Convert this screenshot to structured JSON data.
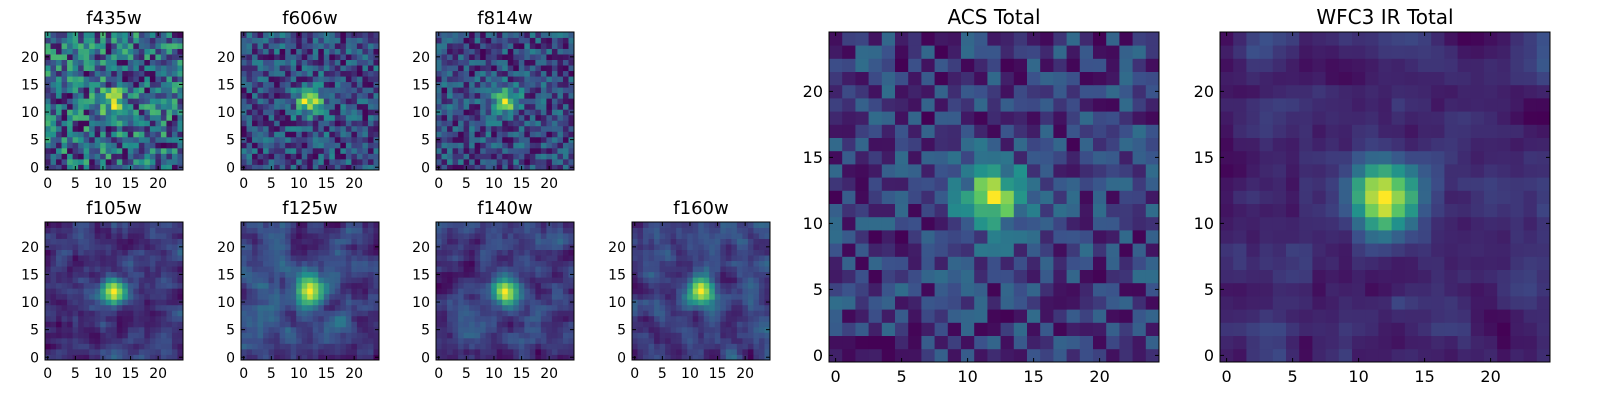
{
  "colormap": [
    "#440154",
    "#3b528b",
    "#21918c",
    "#5ec962",
    "#fde725"
  ],
  "chart_data": [
    {
      "type": "heatmap",
      "title": "f435w",
      "size": 25,
      "noise": 0.9,
      "blob": 0.6,
      "smooth": 0,
      "seed": 11,
      "xticks": [
        0,
        5,
        10,
        15,
        20
      ],
      "yticks": [
        0,
        5,
        10,
        15,
        20
      ],
      "xlim": [
        0,
        25
      ],
      "ylim": [
        0,
        25
      ]
    },
    {
      "type": "heatmap",
      "title": "f606w",
      "size": 25,
      "noise": 0.9,
      "blob": 1.3,
      "smooth": 0,
      "seed": 23,
      "xticks": [
        0,
        5,
        10,
        15,
        20
      ],
      "yticks": [
        0,
        5,
        10,
        15,
        20
      ],
      "xlim": [
        0,
        25
      ],
      "ylim": [
        0,
        25
      ]
    },
    {
      "type": "heatmap",
      "title": "f814w",
      "size": 25,
      "noise": 0.9,
      "blob": 1.2,
      "smooth": 0,
      "seed": 37,
      "xticks": [
        0,
        5,
        10,
        15,
        20
      ],
      "yticks": [
        0,
        5,
        10,
        15,
        20
      ],
      "xlim": [
        0,
        25
      ],
      "ylim": [
        0,
        25
      ]
    },
    {
      "type": "heatmap",
      "title": "f105w",
      "size": 25,
      "noise": 0.9,
      "blob": 1.1,
      "smooth": 1,
      "seed": 41,
      "xticks": [
        0,
        5,
        10,
        15,
        20
      ],
      "yticks": [
        0,
        5,
        10,
        15,
        20
      ],
      "xlim": [
        0,
        25
      ],
      "ylim": [
        0,
        25
      ]
    },
    {
      "type": "heatmap",
      "title": "f125w",
      "size": 25,
      "noise": 0.9,
      "blob": 1.1,
      "smooth": 1,
      "seed": 53,
      "xticks": [
        0,
        5,
        10,
        15,
        20
      ],
      "yticks": [
        0,
        5,
        10,
        15,
        20
      ],
      "xlim": [
        0,
        25
      ],
      "ylim": [
        0,
        25
      ]
    },
    {
      "type": "heatmap",
      "title": "f140w",
      "size": 25,
      "noise": 0.9,
      "blob": 1.0,
      "smooth": 1,
      "seed": 67,
      "xticks": [
        0,
        5,
        10,
        15,
        20
      ],
      "yticks": [
        0,
        5,
        10,
        15,
        20
      ],
      "xlim": [
        0,
        25
      ],
      "ylim": [
        0,
        25
      ]
    },
    {
      "type": "heatmap",
      "title": "f160w",
      "size": 25,
      "noise": 0.9,
      "blob": 1.1,
      "smooth": 1,
      "seed": 79,
      "xticks": [
        0,
        5,
        10,
        15,
        20
      ],
      "yticks": [
        0,
        5,
        10,
        15,
        20
      ],
      "xlim": [
        0,
        25
      ],
      "ylim": [
        0,
        25
      ]
    },
    {
      "type": "heatmap",
      "title": "ACS Total",
      "size": 25,
      "noise": 0.8,
      "blob": 1.5,
      "smooth": 0,
      "seed": 97,
      "xticks": [
        0,
        5,
        10,
        15,
        20
      ],
      "yticks": [
        0,
        5,
        10,
        15,
        20
      ],
      "xlim": [
        0,
        25
      ],
      "ylim": [
        0,
        25
      ]
    },
    {
      "type": "heatmap",
      "title": "WFC3 IR Total",
      "size": 25,
      "noise": 0.8,
      "blob": 1.5,
      "smooth": 1,
      "seed": 113,
      "xticks": [
        0,
        5,
        10,
        15,
        20
      ],
      "yticks": [
        0,
        5,
        10,
        15,
        20
      ],
      "xlim": [
        0,
        25
      ],
      "ylim": [
        0,
        25
      ]
    }
  ]
}
